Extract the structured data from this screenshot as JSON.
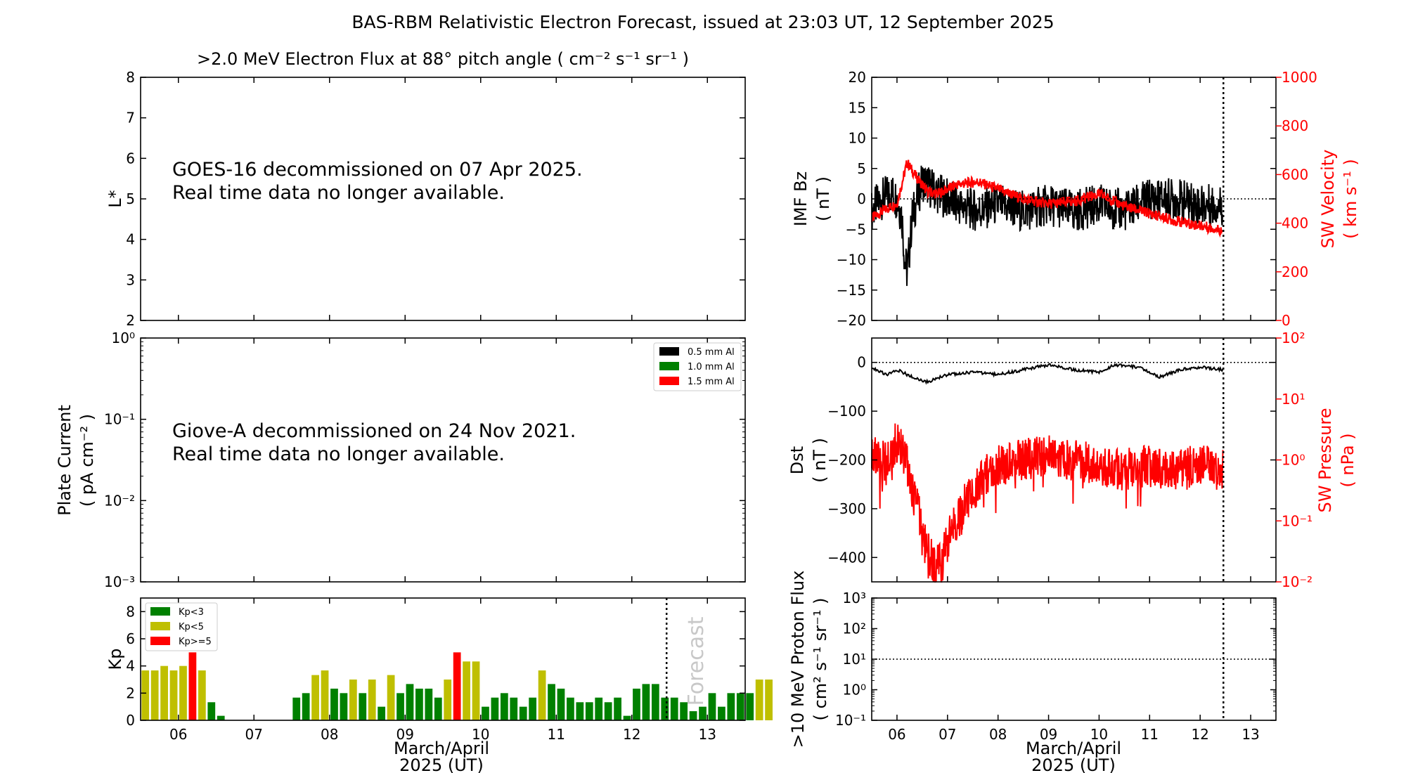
{
  "page": {
    "title": "BAS-RBM Relativistic Electron Forecast, issued at 23:03 UT, 12 September 2025"
  },
  "colors": {
    "black": "#000000",
    "red": "#ff0000",
    "green": "#008000",
    "yellow": "#bfbf00",
    "forecast_text": "#c8c8c8"
  },
  "chart_data": [
    {
      "id": "flux",
      "type": "heatmap",
      "title": ">2.0 MeV Electron Flux at 88° pitch angle ( cm⁻² s⁻¹ sr⁻¹ )",
      "ylabel": "L*",
      "ylim": [
        2,
        8
      ],
      "yticks": [
        2,
        3,
        4,
        5,
        6,
        7,
        8
      ],
      "message": [
        "GOES-16 decommissioned on 07 Apr 2025.",
        "Real time data no longer available."
      ]
    },
    {
      "id": "plate",
      "type": "line",
      "ylabel": [
        "Plate Current",
        "( pA cm⁻² )"
      ],
      "yscale": "log",
      "ylim": [
        0.001,
        1
      ],
      "ytick_labels": [
        "10⁰",
        "10⁻¹",
        "10⁻²",
        "10⁻³"
      ],
      "legend": [
        "0.5 mm Al",
        "1.0 mm Al",
        "1.5 mm Al"
      ],
      "legend_colors": [
        "#000000",
        "#008000",
        "#ff0000"
      ],
      "legend_position": "top-right",
      "message": [
        "Giove-A decommissioned on 24 Nov 2021.",
        "Real time data no longer available."
      ]
    },
    {
      "id": "kp",
      "type": "bar",
      "ylabel": "Kp",
      "ylim": [
        0,
        9
      ],
      "yticks": [
        0,
        2,
        4,
        6,
        8
      ],
      "x_start_day": 5.5,
      "bin_days": 0.125,
      "xlim": [
        5.5,
        13.5
      ],
      "xticks": [
        "06",
        "07",
        "08",
        "09",
        "10",
        "11",
        "12",
        "13"
      ],
      "xlabel": [
        "March/April",
        "2025 (UT)"
      ],
      "forecast_day": 12.46,
      "forecast_label": "Forecast",
      "legend": [
        "Kp<3",
        "Kp<5",
        "Kp>=5"
      ],
      "legend_position": "top-left",
      "values": [
        3.67,
        3.67,
        4.0,
        3.67,
        4.0,
        5.0,
        3.67,
        1.33,
        0.33,
        0,
        0,
        0,
        0,
        0,
        0,
        0,
        1.67,
        2.0,
        3.33,
        3.67,
        2.33,
        2.0,
        3.0,
        2.0,
        3.0,
        1.0,
        3.33,
        2.0,
        2.67,
        2.33,
        2.33,
        1.67,
        3.0,
        5.0,
        4.33,
        4.33,
        1.0,
        1.67,
        2.0,
        1.67,
        1.0,
        1.67,
        3.67,
        2.67,
        2.33,
        1.67,
        1.33,
        1.33,
        1.67,
        1.33,
        1.67,
        0.33,
        2.33,
        2.67,
        2.67,
        1.67,
        1.67,
        1.33,
        0.67,
        1.0,
        2.0,
        1.0,
        2.0,
        2.0,
        2.0,
        3.0,
        3.0
      ]
    },
    {
      "id": "imf",
      "type": "line",
      "ylabel": [
        "IMF Bz",
        "( nT )"
      ],
      "ylim": [
        -20,
        20
      ],
      "yticks": [
        -20,
        -15,
        -10,
        -5,
        0,
        5,
        10,
        15,
        20
      ],
      "y2label": [
        "SW Velocity",
        "( km s⁻¹ )"
      ],
      "y2lim": [
        0,
        1000
      ],
      "y2ticks": [
        0,
        200,
        400,
        600,
        800,
        1000
      ],
      "xlim": [
        5.5,
        13.5
      ],
      "series": [
        {
          "axis": "left",
          "color": "black",
          "x": [
            5.5,
            5.7,
            5.9,
            6.0,
            6.1,
            6.15,
            6.2,
            6.25,
            6.3,
            6.5,
            6.8,
            7.2,
            7.6,
            8.0,
            8.5,
            9.0,
            9.5,
            10.0,
            10.5,
            11.0,
            11.5,
            12.0,
            12.45
          ],
          "y": [
            -2,
            0,
            1,
            0,
            -3,
            -10,
            -12,
            -8,
            -3,
            3,
            1,
            -1,
            -2,
            -1,
            -2,
            -1,
            -2,
            -1,
            -2,
            0,
            0,
            -1,
            -1
          ]
        },
        {
          "axis": "right",
          "color": "red",
          "x": [
            5.5,
            5.8,
            6.0,
            6.2,
            6.35,
            6.6,
            6.8,
            7.2,
            7.6,
            8.0,
            8.5,
            9.0,
            9.5,
            10.0,
            10.5,
            11.0,
            11.5,
            12.0,
            12.45
          ],
          "y": [
            420,
            460,
            480,
            650,
            600,
            530,
            520,
            560,
            570,
            540,
            500,
            480,
            490,
            520,
            470,
            440,
            410,
            390,
            370
          ]
        }
      ]
    },
    {
      "id": "dst",
      "type": "line",
      "ylabel": [
        "Dst",
        "( nT )"
      ],
      "ylim": [
        -450,
        50
      ],
      "yticks": [
        -400,
        -300,
        -200,
        -100,
        0
      ],
      "y2label": [
        "SW Pressure",
        "( nPa )"
      ],
      "y2scale": "log",
      "y2lim": [
        0.01,
        100
      ],
      "y2tick_labels": [
        "10⁻²",
        "10⁻¹",
        "10⁰",
        "10¹",
        "10²"
      ],
      "xlim": [
        5.5,
        13.5
      ],
      "series": [
        {
          "axis": "left",
          "color": "black",
          "x": [
            5.5,
            5.8,
            6.0,
            6.3,
            6.6,
            7.0,
            7.5,
            8.0,
            8.5,
            9.0,
            9.5,
            10.0,
            10.3,
            10.8,
            11.2,
            11.6,
            12.0,
            12.45
          ],
          "y": [
            -10,
            -25,
            -15,
            -30,
            -40,
            -25,
            -20,
            -25,
            -15,
            -5,
            -15,
            -20,
            -5,
            -10,
            -30,
            -15,
            -10,
            -15
          ]
        },
        {
          "axis": "right",
          "color": "red",
          "x": [
            5.5,
            5.8,
            6.0,
            6.3,
            6.5,
            6.7,
            6.9,
            7.2,
            7.5,
            8.0,
            8.5,
            9.0,
            9.5,
            10.0,
            10.5,
            11.0,
            11.5,
            12.0,
            12.45
          ],
          "y": [
            1.5,
            0.8,
            2.0,
            0.3,
            0.05,
            0.02,
            0.02,
            0.1,
            0.3,
            0.8,
            1.0,
            1.2,
            1.0,
            0.8,
            0.7,
            0.8,
            0.7,
            0.8,
            0.7
          ]
        }
      ]
    },
    {
      "id": "proton",
      "type": "line",
      "ylabel": [
        ">10 MeV Proton Flux",
        "( cm² s⁻¹ sr⁻¹ )"
      ],
      "yscale": "log",
      "ylim": [
        0.1,
        1000
      ],
      "ytick_labels": [
        "10⁻¹",
        "10⁰",
        "10¹",
        "10²",
        "10³"
      ],
      "threshold": 10,
      "xlim": [
        5.5,
        13.5
      ],
      "xticks": [
        "06",
        "07",
        "08",
        "09",
        "10",
        "11",
        "12",
        "13"
      ],
      "xlabel": [
        "March/April",
        "2025 (UT)"
      ]
    }
  ]
}
